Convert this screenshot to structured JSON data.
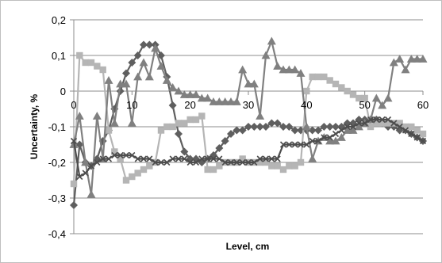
{
  "chart_data": {
    "type": "line",
    "title": "",
    "xlabel": "Level, cm",
    "ylabel": "Uncertainty, %",
    "xlim": [
      0,
      60
    ],
    "ylim": [
      -0.4,
      0.2
    ],
    "xticks": [
      0,
      10,
      20,
      30,
      40,
      50,
      60
    ],
    "yticks": [
      -0.4,
      -0.3,
      -0.2,
      -0.1,
      0,
      0.1,
      0.2
    ],
    "xtick_labels": [
      "0",
      "10",
      "20",
      "30",
      "40",
      "50",
      "60"
    ],
    "ytick_labels": [
      "-0,4",
      "-0,3",
      "-0,2",
      "-0,1",
      "0",
      "0,1",
      "0,2"
    ],
    "grid": "horizontal",
    "legend": "none",
    "series": [
      {
        "marker": "diamond",
        "color": "#5f5f5f",
        "x": [
          0,
          1,
          2,
          3,
          4,
          5,
          6,
          7,
          8,
          9,
          10,
          11,
          12,
          13,
          14,
          15,
          16,
          17,
          18,
          19,
          20,
          21,
          22,
          23,
          24,
          25,
          26,
          27,
          28,
          29,
          30,
          31,
          32,
          33,
          34,
          35,
          36,
          37,
          38,
          39,
          40,
          41,
          42,
          43,
          44,
          45,
          46,
          47,
          48,
          49,
          50,
          51,
          52,
          53,
          54,
          55,
          56,
          57,
          58,
          59,
          60
        ],
        "y": [
          -0.32,
          -0.15,
          -0.2,
          -0.21,
          -0.19,
          -0.14,
          -0.11,
          -0.05,
          0.0,
          0.05,
          0.08,
          0.1,
          0.13,
          0.13,
          0.13,
          0.1,
          0.04,
          -0.04,
          -0.12,
          -0.17,
          -0.19,
          -0.19,
          -0.2,
          -0.19,
          -0.18,
          -0.16,
          -0.14,
          -0.12,
          -0.11,
          -0.11,
          -0.1,
          -0.1,
          -0.1,
          -0.1,
          -0.09,
          -0.09,
          -0.1,
          -0.1,
          -0.11,
          -0.11,
          -0.11,
          -0.11,
          -0.11,
          -0.1,
          -0.1,
          -0.1,
          -0.1,
          -0.09,
          -0.09,
          -0.08,
          -0.08,
          -0.08,
          -0.08,
          -0.09,
          -0.1,
          -0.1,
          -0.11,
          -0.11,
          -0.12,
          -0.13,
          -0.14
        ]
      },
      {
        "marker": "square",
        "color": "#b5b5b5",
        "x": [
          0,
          1,
          2,
          3,
          4,
          5,
          6,
          7,
          8,
          9,
          10,
          11,
          12,
          13,
          14,
          15,
          16,
          17,
          18,
          19,
          20,
          21,
          22,
          23,
          24,
          25,
          26,
          27,
          28,
          29,
          30,
          31,
          32,
          33,
          34,
          35,
          36,
          37,
          38,
          39,
          40,
          41,
          42,
          43,
          44,
          45,
          46,
          47,
          48,
          49,
          50,
          51,
          52,
          53,
          54,
          55,
          56,
          57,
          58,
          59,
          60
        ],
        "y": [
          -0.26,
          0.1,
          0.08,
          0.08,
          0.07,
          0.06,
          -0.11,
          -0.17,
          -0.19,
          -0.25,
          -0.24,
          -0.23,
          -0.22,
          -0.21,
          -0.2,
          -0.11,
          -0.1,
          -0.1,
          -0.09,
          -0.09,
          -0.08,
          -0.08,
          -0.07,
          -0.22,
          -0.22,
          -0.21,
          -0.2,
          -0.2,
          -0.2,
          -0.19,
          -0.2,
          -0.2,
          -0.2,
          -0.2,
          -0.21,
          -0.21,
          -0.22,
          -0.21,
          -0.21,
          -0.2,
          0.0,
          0.04,
          0.04,
          0.04,
          0.03,
          0.02,
          0.01,
          0.0,
          -0.01,
          -0.02,
          -0.02,
          -0.1,
          -0.09,
          -0.09,
          -0.09,
          -0.09,
          -0.09,
          -0.1,
          -0.1,
          -0.11,
          -0.12
        ]
      },
      {
        "marker": "triangle",
        "color": "#808080",
        "x": [
          0,
          1,
          2,
          3,
          4,
          5,
          6,
          7,
          8,
          9,
          10,
          11,
          12,
          13,
          14,
          15,
          16,
          17,
          18,
          19,
          20,
          21,
          22,
          23,
          24,
          25,
          26,
          27,
          28,
          29,
          30,
          31,
          32,
          33,
          34,
          35,
          36,
          37,
          38,
          39,
          40,
          41,
          42,
          43,
          44,
          45,
          46,
          47,
          48,
          49,
          50,
          51,
          52,
          53,
          54,
          55,
          56,
          57,
          58,
          59,
          60
        ],
        "y": [
          -0.15,
          -0.07,
          -0.2,
          -0.29,
          -0.07,
          -0.19,
          0.03,
          -0.09,
          0.02,
          0.02,
          -0.09,
          0.04,
          0.08,
          0.04,
          0.12,
          0.07,
          0.03,
          0.01,
          0.0,
          -0.01,
          -0.01,
          -0.01,
          -0.02,
          -0.02,
          -0.03,
          -0.03,
          -0.03,
          -0.03,
          -0.03,
          0.06,
          0.02,
          0.02,
          -0.07,
          0.1,
          0.14,
          0.07,
          0.06,
          0.06,
          0.06,
          0.05,
          -0.1,
          -0.19,
          -0.14,
          -0.13,
          -0.14,
          -0.14,
          -0.13,
          -0.11,
          -0.11,
          -0.1,
          -0.09,
          -0.08,
          -0.02,
          -0.04,
          -0.02,
          0.08,
          0.09,
          0.06,
          0.09,
          0.09,
          0.09
        ]
      },
      {
        "marker": "x",
        "color": "#4d4d4d",
        "x": [
          0,
          1,
          2,
          3,
          4,
          5,
          6,
          7,
          8,
          9,
          10,
          11,
          12,
          13,
          14,
          15,
          16,
          17,
          18,
          19,
          20,
          21,
          22,
          23,
          24,
          25,
          26,
          27,
          28,
          29,
          30,
          31,
          32,
          33,
          34,
          35,
          36,
          37,
          38,
          39,
          40,
          41,
          42,
          43,
          44,
          45,
          46,
          47,
          48,
          49,
          50,
          51,
          52,
          53,
          54,
          55,
          56,
          57,
          58,
          59,
          60
        ],
        "y": [
          -0.14,
          -0.24,
          -0.23,
          -0.21,
          -0.2,
          -0.19,
          -0.19,
          -0.18,
          -0.18,
          -0.18,
          -0.18,
          -0.19,
          -0.19,
          -0.19,
          -0.2,
          -0.2,
          -0.2,
          -0.19,
          -0.19,
          -0.19,
          -0.2,
          -0.2,
          -0.19,
          -0.19,
          -0.19,
          -0.19,
          -0.2,
          -0.2,
          -0.2,
          -0.2,
          -0.2,
          -0.2,
          -0.19,
          -0.19,
          -0.19,
          -0.19,
          -0.15,
          -0.15,
          -0.15,
          -0.15,
          -0.15,
          -0.14,
          -0.14,
          -0.13,
          -0.13,
          -0.12,
          -0.11,
          -0.1,
          -0.1,
          -0.09,
          -0.09,
          -0.08,
          -0.08,
          -0.08,
          -0.08,
          -0.09,
          -0.1,
          -0.11,
          -0.12,
          -0.13,
          -0.14
        ]
      }
    ]
  }
}
